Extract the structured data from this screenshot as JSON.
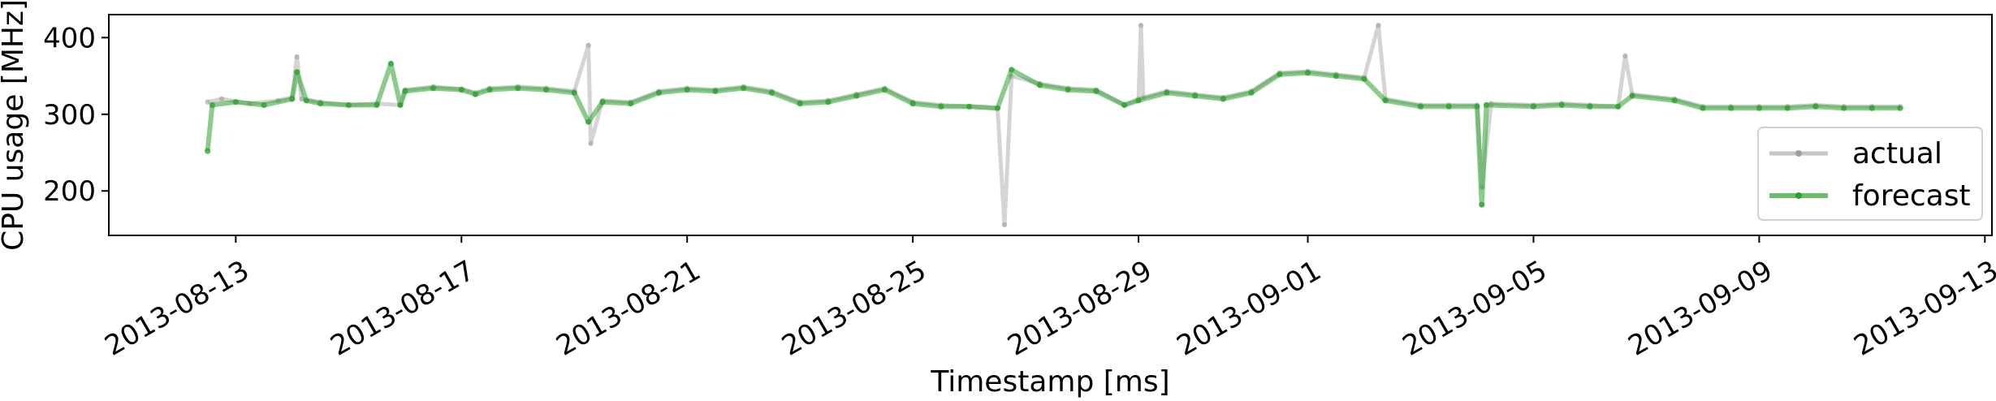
{
  "chart_data": {
    "type": "line",
    "title": "",
    "xlabel": "Timestamp [ms]",
    "ylabel": "CPU usage [MHz]",
    "x_type": "date",
    "x_range": [
      "2013-08-10T18:00:00",
      "2013-09-13T03:00:00"
    ],
    "ylim": [
      142,
      430
    ],
    "x_ticks": [
      "2013-08-13",
      "2013-08-17",
      "2013-08-21",
      "2013-08-25",
      "2013-08-29",
      "2013-09-01",
      "2013-09-05",
      "2013-09-09",
      "2013-09-13"
    ],
    "y_ticks": [
      200,
      300,
      400
    ],
    "grid": false,
    "legend": {
      "position": "lower-right",
      "entries": [
        "actual",
        "forecast"
      ]
    },
    "series": [
      {
        "name": "actual",
        "color": "#a0a0a0",
        "points": [
          [
            "2013-08-12T12:00",
            316
          ],
          [
            "2013-08-12T18:00",
            320
          ],
          [
            "2013-08-13T06:00",
            314
          ],
          [
            "2013-08-13T18:00",
            318
          ],
          [
            "2013-08-14T00:00",
            322
          ],
          [
            "2013-08-14T02:00",
            375
          ],
          [
            "2013-08-14T04:00",
            320
          ],
          [
            "2013-08-14T12:00",
            316
          ],
          [
            "2013-08-15T00:00",
            312
          ],
          [
            "2013-08-15T12:00",
            314
          ],
          [
            "2013-08-15T22:00",
            312
          ],
          [
            "2013-08-16T00:00",
            332
          ],
          [
            "2013-08-16T12:00",
            336
          ],
          [
            "2013-08-17T00:00",
            333
          ],
          [
            "2013-08-17T06:00",
            328
          ],
          [
            "2013-08-17T12:00",
            334
          ],
          [
            "2013-08-18T00:00",
            336
          ],
          [
            "2013-08-18T12:00",
            334
          ],
          [
            "2013-08-19T00:00",
            330
          ],
          [
            "2013-08-19T06:00",
            390
          ],
          [
            "2013-08-19T07:00",
            262
          ],
          [
            "2013-08-19T12:00",
            318
          ],
          [
            "2013-08-20T00:00",
            316
          ],
          [
            "2013-08-20T12:00",
            330
          ],
          [
            "2013-08-21T00:00",
            334
          ],
          [
            "2013-08-21T12:00",
            332
          ],
          [
            "2013-08-22T00:00",
            336
          ],
          [
            "2013-08-22T12:00",
            330
          ],
          [
            "2013-08-23T00:00",
            316
          ],
          [
            "2013-08-23T12:00",
            318
          ],
          [
            "2013-08-24T00:00",
            326
          ],
          [
            "2013-08-24T12:00",
            334
          ],
          [
            "2013-08-25T00:00",
            316
          ],
          [
            "2013-08-25T12:00",
            312
          ],
          [
            "2013-08-26T00:00",
            310
          ],
          [
            "2013-08-26T12:00",
            308
          ],
          [
            "2013-08-26T15:00",
            156
          ],
          [
            "2013-08-26T18:00",
            350
          ],
          [
            "2013-08-27T06:00",
            340
          ],
          [
            "2013-08-27T18:00",
            334
          ],
          [
            "2013-08-28T06:00",
            332
          ],
          [
            "2013-08-28T18:00",
            312
          ],
          [
            "2013-08-29T00:00",
            320
          ],
          [
            "2013-08-29T01:00",
            416
          ],
          [
            "2013-08-29T02:00",
            322
          ],
          [
            "2013-08-29T12:00",
            330
          ],
          [
            "2013-08-30T00:00",
            326
          ],
          [
            "2013-08-30T12:00",
            322
          ],
          [
            "2013-08-31T00:00",
            330
          ],
          [
            "2013-08-31T12:00",
            354
          ],
          [
            "2013-09-01T00:00",
            356
          ],
          [
            "2013-09-01T12:00",
            352
          ],
          [
            "2013-09-02T00:00",
            348
          ],
          [
            "2013-09-02T06:00",
            416
          ],
          [
            "2013-09-02T09:00",
            320
          ],
          [
            "2013-09-03T00:00",
            312
          ],
          [
            "2013-09-03T12:00",
            312
          ],
          [
            "2013-09-04T00:00",
            312
          ],
          [
            "2013-09-04T02:00",
            205
          ],
          [
            "2013-09-04T06:00",
            314
          ],
          [
            "2013-09-05T00:00",
            312
          ],
          [
            "2013-09-05T12:00",
            314
          ],
          [
            "2013-09-06T00:00",
            312
          ],
          [
            "2013-09-06T12:00",
            310
          ],
          [
            "2013-09-06T15:00",
            376
          ],
          [
            "2013-09-06T18:00",
            326
          ],
          [
            "2013-09-07T12:00",
            320
          ],
          [
            "2013-09-08T00:00",
            310
          ],
          [
            "2013-09-08T12:00",
            310
          ],
          [
            "2013-09-09T00:00",
            310
          ],
          [
            "2013-09-09T12:00",
            310
          ],
          [
            "2013-09-10T00:00",
            312
          ],
          [
            "2013-09-10T12:00",
            310
          ],
          [
            "2013-09-11T00:00",
            310
          ],
          [
            "2013-09-11T12:00",
            310
          ]
        ]
      },
      {
        "name": "forecast",
        "color": "#2ca02c",
        "points": [
          [
            "2013-08-12T12:00",
            252
          ],
          [
            "2013-08-12T14:00",
            312
          ],
          [
            "2013-08-13T00:00",
            316
          ],
          [
            "2013-08-13T12:00",
            312
          ],
          [
            "2013-08-14T00:00",
            320
          ],
          [
            "2013-08-14T02:00",
            355
          ],
          [
            "2013-08-14T06:00",
            318
          ],
          [
            "2013-08-14T12:00",
            314
          ],
          [
            "2013-08-15T00:00",
            312
          ],
          [
            "2013-08-15T12:00",
            312
          ],
          [
            "2013-08-15T18:00",
            366
          ],
          [
            "2013-08-15T22:00",
            312
          ],
          [
            "2013-08-16T00:00",
            330
          ],
          [
            "2013-08-16T12:00",
            334
          ],
          [
            "2013-08-17T00:00",
            332
          ],
          [
            "2013-08-17T06:00",
            326
          ],
          [
            "2013-08-17T12:00",
            332
          ],
          [
            "2013-08-18T00:00",
            334
          ],
          [
            "2013-08-18T12:00",
            332
          ],
          [
            "2013-08-19T00:00",
            328
          ],
          [
            "2013-08-19T06:00",
            290
          ],
          [
            "2013-08-19T12:00",
            316
          ],
          [
            "2013-08-20T00:00",
            314
          ],
          [
            "2013-08-20T12:00",
            328
          ],
          [
            "2013-08-21T00:00",
            332
          ],
          [
            "2013-08-21T12:00",
            330
          ],
          [
            "2013-08-22T00:00",
            334
          ],
          [
            "2013-08-22T12:00",
            328
          ],
          [
            "2013-08-23T00:00",
            314
          ],
          [
            "2013-08-23T12:00",
            316
          ],
          [
            "2013-08-24T00:00",
            324
          ],
          [
            "2013-08-24T12:00",
            332
          ],
          [
            "2013-08-25T00:00",
            314
          ],
          [
            "2013-08-25T12:00",
            310
          ],
          [
            "2013-08-26T00:00",
            310
          ],
          [
            "2013-08-26T12:00",
            308
          ],
          [
            "2013-08-26T18:00",
            358
          ],
          [
            "2013-08-27T06:00",
            338
          ],
          [
            "2013-08-27T18:00",
            332
          ],
          [
            "2013-08-28T06:00",
            330
          ],
          [
            "2013-08-28T18:00",
            312
          ],
          [
            "2013-08-29T00:00",
            318
          ],
          [
            "2013-08-29T12:00",
            328
          ],
          [
            "2013-08-30T00:00",
            324
          ],
          [
            "2013-08-30T12:00",
            320
          ],
          [
            "2013-08-31T00:00",
            328
          ],
          [
            "2013-08-31T12:00",
            352
          ],
          [
            "2013-09-01T00:00",
            354
          ],
          [
            "2013-09-01T12:00",
            350
          ],
          [
            "2013-09-02T00:00",
            346
          ],
          [
            "2013-09-02T09:00",
            318
          ],
          [
            "2013-09-03T00:00",
            310
          ],
          [
            "2013-09-03T12:00",
            310
          ],
          [
            "2013-09-04T00:00",
            310
          ],
          [
            "2013-09-04T02:00",
            182
          ],
          [
            "2013-09-04T04:00",
            312
          ],
          [
            "2013-09-05T00:00",
            310
          ],
          [
            "2013-09-05T12:00",
            312
          ],
          [
            "2013-09-06T00:00",
            310
          ],
          [
            "2013-09-06T12:00",
            310
          ],
          [
            "2013-09-06T18:00",
            324
          ],
          [
            "2013-09-07T12:00",
            318
          ],
          [
            "2013-09-08T00:00",
            308
          ],
          [
            "2013-09-08T12:00",
            308
          ],
          [
            "2013-09-09T00:00",
            308
          ],
          [
            "2013-09-09T12:00",
            308
          ],
          [
            "2013-09-10T00:00",
            310
          ],
          [
            "2013-09-10T12:00",
            308
          ],
          [
            "2013-09-11T00:00",
            308
          ],
          [
            "2013-09-11T12:00",
            308
          ]
        ]
      }
    ]
  }
}
